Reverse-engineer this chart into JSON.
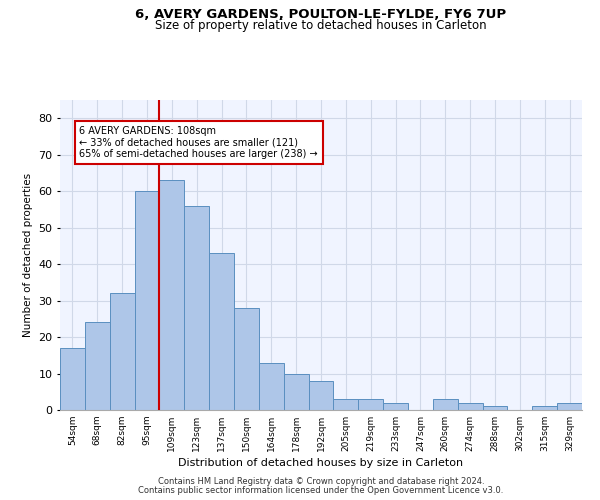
{
  "title1": "6, AVERY GARDENS, POULTON-LE-FYLDE, FY6 7UP",
  "title2": "Size of property relative to detached houses in Carleton",
  "xlabel": "Distribution of detached houses by size in Carleton",
  "ylabel": "Number of detached properties",
  "categories": [
    "54sqm",
    "68sqm",
    "82sqm",
    "95sqm",
    "109sqm",
    "123sqm",
    "137sqm",
    "150sqm",
    "164sqm",
    "178sqm",
    "192sqm",
    "205sqm",
    "219sqm",
    "233sqm",
    "247sqm",
    "260sqm",
    "274sqm",
    "288sqm",
    "302sqm",
    "315sqm",
    "329sqm"
  ],
  "values": [
    17,
    24,
    32,
    60,
    63,
    56,
    43,
    28,
    13,
    10,
    8,
    3,
    3,
    2,
    0,
    3,
    2,
    1,
    0,
    1,
    2
  ],
  "bar_color": "#aec6e8",
  "bar_edge_color": "#5a8fc0",
  "grid_color": "#d0d8e8",
  "ref_line_color": "#cc0000",
  "annotation_line1": "6 AVERY GARDENS: 108sqm",
  "annotation_line2": "← 33% of detached houses are smaller (121)",
  "annotation_line3": "65% of semi-detached houses are larger (238) →",
  "annotation_box_color": "#cc0000",
  "footer1": "Contains HM Land Registry data © Crown copyright and database right 2024.",
  "footer2": "Contains public sector information licensed under the Open Government Licence v3.0.",
  "ylim": [
    0,
    85
  ],
  "yticks": [
    0,
    10,
    20,
    30,
    40,
    50,
    60,
    70,
    80
  ],
  "ref_bar_index": 4,
  "bg_color": "#f0f4ff"
}
